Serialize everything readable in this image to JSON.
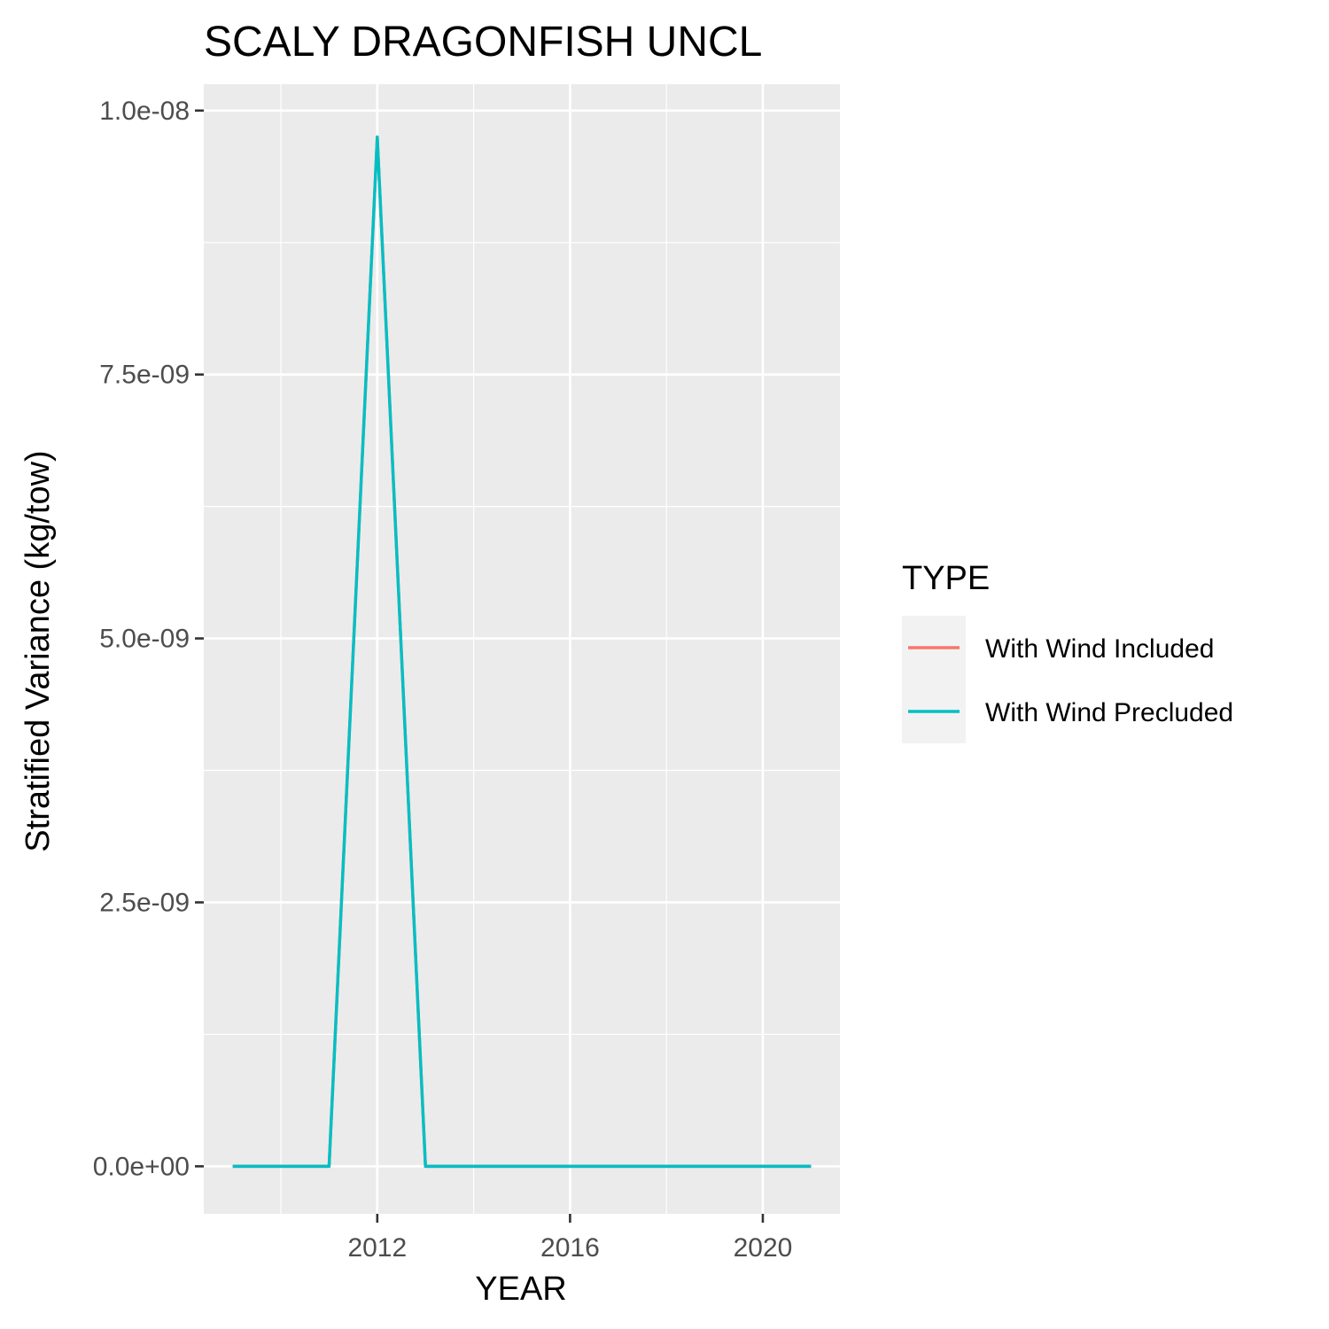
{
  "chart_data": {
    "type": "line",
    "title": "SCALY DRAGONFISH UNCL",
    "xlabel": "YEAR",
    "ylabel": "Stratified Variance (kg/tow)",
    "x": [
      2009,
      2010,
      2011,
      2012,
      2013,
      2014,
      2015,
      2016,
      2017,
      2018,
      2019,
      2020,
      2021
    ],
    "series": [
      {
        "name": "With Wind Included",
        "color": "#F8766D",
        "values": [
          0,
          0,
          0,
          9.75e-09,
          0,
          0,
          0,
          0,
          0,
          0,
          0,
          0,
          0
        ]
      },
      {
        "name": "With Wind Precluded",
        "color": "#00BFC4",
        "values": [
          0,
          0,
          0,
          9.75e-09,
          0,
          0,
          0,
          0,
          0,
          0,
          0,
          0,
          0
        ]
      }
    ],
    "xlim": [
      2008.4,
      2021.6
    ],
    "ylim": [
      -4.5e-10,
      1.025e-08
    ],
    "x_ticks": [
      2012,
      2016,
      2020
    ],
    "x_tick_labels": [
      "2012",
      "2016",
      "2020"
    ],
    "y_ticks": [
      0,
      2.5e-09,
      5e-09,
      7.5e-09,
      1e-08
    ],
    "y_tick_labels": [
      "0.0e+00",
      "2.5e-09",
      "5.0e-09",
      "7.5e-09",
      "1.0e-08"
    ],
    "grid": true,
    "legend": {
      "title": "TYPE",
      "position": "right"
    },
    "colors": {
      "panel_background": "#EBEBEB",
      "grid": "#FFFFFF",
      "legend_key_background": "#F2F2F2"
    }
  }
}
